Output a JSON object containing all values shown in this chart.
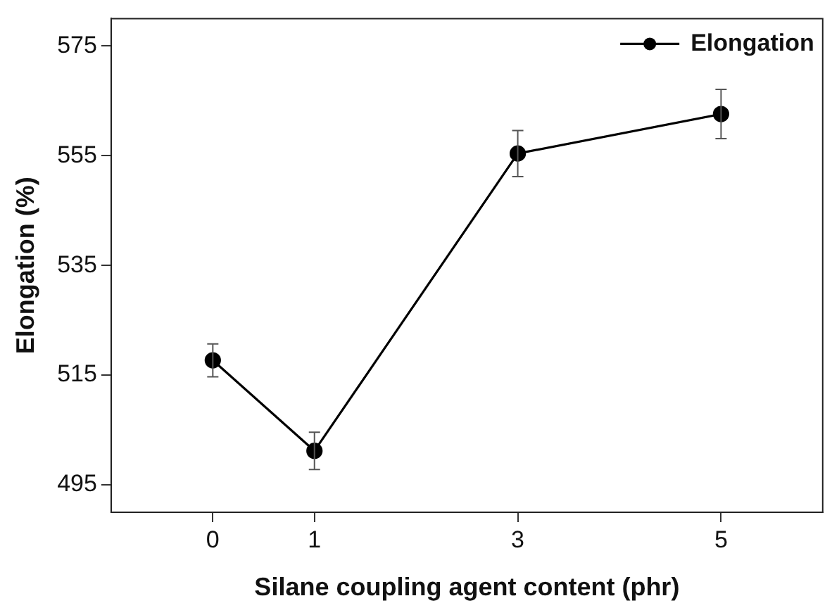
{
  "chart_data": {
    "type": "line",
    "xlabel": "Silane coupling agent content (phr)",
    "ylabel": "Elongation (%)",
    "x": [
      0,
      1,
      3,
      5
    ],
    "series": [
      {
        "name": "Elongation",
        "color": "#000000",
        "values": [
          517.7,
          501.2,
          555.4,
          562.6
        ],
        "errors": [
          3,
          3.4,
          4.2,
          4.5
        ]
      }
    ],
    "xlim": [
      -1,
      6
    ],
    "xticks": [
      0,
      1,
      3,
      5
    ],
    "ylim": [
      490,
      580
    ],
    "yticks": [
      495,
      515,
      535,
      555,
      575
    ],
    "grid": false,
    "legend": "top right",
    "marker": "circle",
    "line_style": "solid"
  }
}
